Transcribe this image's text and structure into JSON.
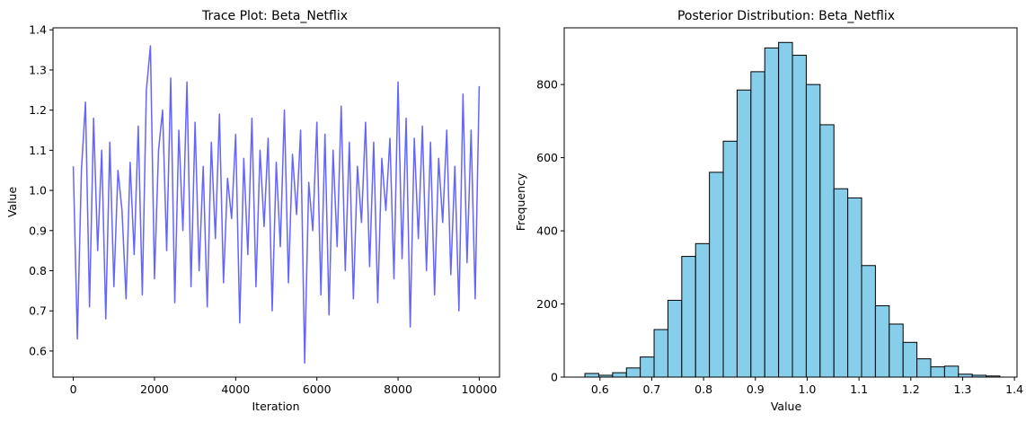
{
  "chart_data": [
    {
      "type": "line",
      "title": "Trace Plot: Beta_Netflix",
      "xlabel": "Iteration",
      "ylabel": "Value",
      "xlim": [
        -500,
        10500
      ],
      "ylim": [
        0.535,
        1.405
      ],
      "xticks": [
        0,
        2000,
        4000,
        6000,
        8000,
        10000
      ],
      "yticks": [
        0.6,
        0.7,
        0.8,
        0.9,
        1.0,
        1.1,
        1.2,
        1.3,
        1.4
      ],
      "ytick_labels": [
        "0.6",
        "0.7",
        "0.8",
        "0.9",
        "1.0",
        "1.1",
        "1.2",
        "1.3",
        "1.4"
      ],
      "grid": false,
      "line_color": "#6464ff",
      "series": [
        {
          "x": [
            0,
            100,
            200,
            300,
            400,
            500,
            600,
            700,
            800,
            900,
            1000,
            1100,
            1200,
            1300,
            1400,
            1500,
            1600,
            1700,
            1800,
            1900,
            2000,
            2100,
            2200,
            2300,
            2400,
            2500,
            2600,
            2700,
            2800,
            2900,
            3000,
            3100,
            3200,
            3300,
            3400,
            3500,
            3600,
            3700,
            3800,
            3900,
            4000,
            4100,
            4200,
            4300,
            4400,
            4500,
            4600,
            4700,
            4800,
            4900,
            5000,
            5100,
            5200,
            5300,
            5400,
            5500,
            5600,
            5700,
            5800,
            5900,
            6000,
            6100,
            6200,
            6300,
            6400,
            6500,
            6600,
            6700,
            6800,
            6900,
            7000,
            7100,
            7200,
            7300,
            7400,
            7500,
            7600,
            7700,
            7800,
            7900,
            8000,
            8100,
            8200,
            8300,
            8400,
            8500,
            8600,
            8700,
            8800,
            8900,
            9000,
            9100,
            9200,
            9300,
            9400,
            9500,
            9600,
            9700,
            9800,
            9900,
            10000
          ],
          "values": [
            1.06,
            0.63,
            1.05,
            1.22,
            0.71,
            1.18,
            0.85,
            1.1,
            0.68,
            1.12,
            0.76,
            1.05,
            0.95,
            0.73,
            1.07,
            0.84,
            1.16,
            0.74,
            1.25,
            1.36,
            0.78,
            1.1,
            1.2,
            0.85,
            1.28,
            0.72,
            1.15,
            0.9,
            1.27,
            0.76,
            1.17,
            0.8,
            1.06,
            0.71,
            1.12,
            0.88,
            1.19,
            0.77,
            1.03,
            0.93,
            1.14,
            0.67,
            1.08,
            0.84,
            1.18,
            0.76,
            1.1,
            0.91,
            1.13,
            0.7,
            1.07,
            0.86,
            1.2,
            0.77,
            1.09,
            0.94,
            1.15,
            0.57,
            1.02,
            0.9,
            1.17,
            0.74,
            1.14,
            0.69,
            1.1,
            0.86,
            1.21,
            0.8,
            1.12,
            0.73,
            1.06,
            0.92,
            1.17,
            0.81,
            1.12,
            0.72,
            1.08,
            0.95,
            1.13,
            0.78,
            1.27,
            0.83,
            1.18,
            0.66,
            1.13,
            0.88,
            1.16,
            0.8,
            1.12,
            0.74,
            1.08,
            0.92,
            1.15,
            0.79,
            1.06,
            0.7,
            1.24,
            0.82,
            1.15,
            0.73,
            1.26
          ]
        }
      ]
    },
    {
      "type": "bar",
      "title": "Posterior Distribution: Beta_Netflix",
      "xlabel": "Value",
      "ylabel": "Frequency",
      "xlim": [
        0.531,
        1.405
      ],
      "ylim": [
        0,
        955
      ],
      "xticks": [
        0.6,
        0.7,
        0.8,
        0.9,
        1.0,
        1.1,
        1.2,
        1.3,
        1.4
      ],
      "xtick_labels": [
        "0.6",
        "0.7",
        "0.8",
        "0.9",
        "1.0",
        "1.1",
        "1.2",
        "1.3",
        "1.4"
      ],
      "yticks": [
        0,
        200,
        400,
        600,
        800
      ],
      "grid": false,
      "bar_color": "#87ceeb",
      "edge_color": "#000000",
      "bin_edges": [
        0.571,
        0.5977,
        0.6244,
        0.6511,
        0.6778,
        0.7045,
        0.7312,
        0.7579,
        0.7846,
        0.8113,
        0.838,
        0.8647,
        0.8914,
        0.9181,
        0.9448,
        0.9715,
        0.9982,
        1.0249,
        1.0516,
        1.0783,
        1.105,
        1.1317,
        1.1584,
        1.1851,
        1.2118,
        1.2385,
        1.2652,
        1.2919,
        1.3186,
        1.3453,
        1.372
      ],
      "values": [
        10,
        5,
        12,
        25,
        55,
        130,
        210,
        330,
        365,
        560,
        645,
        785,
        835,
        900,
        915,
        880,
        800,
        690,
        515,
        490,
        305,
        195,
        145,
        95,
        50,
        28,
        30,
        8,
        5,
        3
      ]
    }
  ]
}
